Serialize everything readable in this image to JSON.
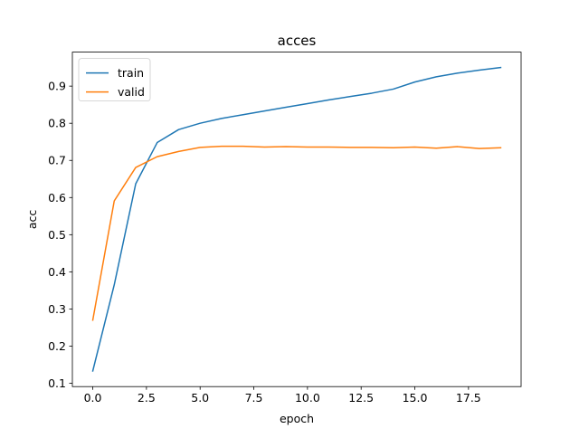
{
  "chart_data": {
    "type": "line",
    "title": "acces",
    "xlabel": "epoch",
    "ylabel": "acc",
    "xlim": [
      -0.95,
      19.95
    ],
    "ylim": [
      0.091,
      0.9915
    ],
    "x_ticks": [
      0.0,
      2.5,
      5.0,
      7.5,
      10.0,
      12.5,
      15.0,
      17.5
    ],
    "x_tick_labels": [
      "0.0",
      "2.5",
      "5.0",
      "7.5",
      "10.0",
      "12.5",
      "15.0",
      "17.5"
    ],
    "y_ticks": [
      0.1,
      0.2,
      0.3,
      0.4,
      0.5,
      0.6,
      0.7,
      0.8,
      0.9
    ],
    "y_tick_labels": [
      "0.1",
      "0.2",
      "0.3",
      "0.4",
      "0.5",
      "0.6",
      "0.7",
      "0.8",
      "0.9"
    ],
    "grid": false,
    "legend_position": "upper-left",
    "x": [
      0,
      1,
      2,
      3,
      4,
      5,
      6,
      7,
      8,
      9,
      10,
      11,
      12,
      13,
      14,
      15,
      16,
      17,
      18,
      19
    ],
    "series": [
      {
        "name": "train",
        "color": "#1f77b4",
        "values": [
          0.133,
          0.365,
          0.637,
          0.748,
          0.783,
          0.8,
          0.813,
          0.823,
          0.833,
          0.843,
          0.853,
          0.863,
          0.872,
          0.881,
          0.892,
          0.911,
          0.925,
          0.935,
          0.943,
          0.95
        ]
      },
      {
        "name": "valid",
        "color": "#ff7f0e",
        "values": [
          0.27,
          0.591,
          0.681,
          0.71,
          0.724,
          0.735,
          0.738,
          0.738,
          0.736,
          0.737,
          0.736,
          0.736,
          0.735,
          0.735,
          0.734,
          0.736,
          0.733,
          0.737,
          0.732,
          0.734
        ]
      }
    ]
  }
}
